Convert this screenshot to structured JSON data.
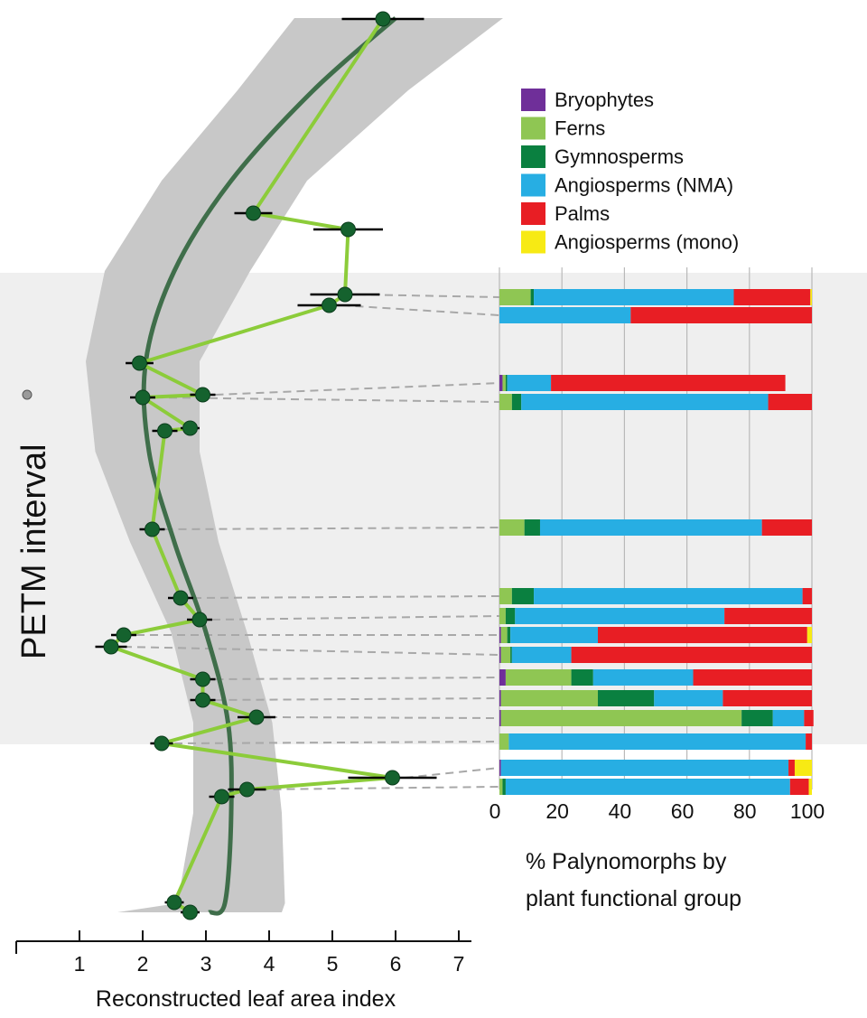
{
  "colors": {
    "Bryophytes": "#6f2f99",
    "Ferns": "#8fc653",
    "Gymnosperms": "#0a8040",
    "Angiosperms (NMA)": "#27aee3",
    "Palms": "#e81e24",
    "Angiosperms (mono)": "#f7ea14",
    "trend_line": "#3f6e4a",
    "raw_line": "#8ccc3a",
    "point": "#15622e",
    "ci_band": "#c8c8c8",
    "petm_band": "#efefef"
  },
  "petm_label": "PETM interval",
  "chart_data": [
    {
      "type": "line",
      "name": "lai",
      "xlabel": "Reconstructed leaf area index",
      "xlim": [
        0,
        7
      ],
      "x_ticks": [
        1,
        2,
        3,
        4,
        5,
        6,
        7
      ],
      "points": [
        {
          "lai": 5.8,
          "err": 0.65
        },
        {
          "lai": 3.75,
          "err": 0.3
        },
        {
          "lai": 5.25,
          "err": 0.55
        },
        {
          "lai": 5.2,
          "err": 0.55
        },
        {
          "lai": 4.95,
          "err": 0.5
        },
        {
          "lai": 1.95,
          "err": 0.22
        },
        {
          "lai": 2.95,
          "err": 0.2
        },
        {
          "lai": 2.0,
          "err": 0.2
        },
        {
          "lai": 2.75,
          "err": 0.15
        },
        {
          "lai": 2.35,
          "err": 0.2
        },
        {
          "lai": 2.15,
          "err": 0.2
        },
        {
          "lai": 2.6,
          "err": 0.2
        },
        {
          "lai": 2.9,
          "err": 0.2
        },
        {
          "lai": 1.7,
          "err": 0.2
        },
        {
          "lai": 1.5,
          "err": 0.25
        },
        {
          "lai": 2.95,
          "err": 0.2
        },
        {
          "lai": 2.95,
          "err": 0.2
        },
        {
          "lai": 3.8,
          "err": 0.3
        },
        {
          "lai": 2.3,
          "err": 0.18
        },
        {
          "lai": 5.95,
          "err": 0.7
        },
        {
          "lai": 3.65,
          "err": 0.3
        },
        {
          "lai": 3.25,
          "err": 0.2
        },
        {
          "lai": 2.5,
          "err": 0.15
        },
        {
          "lai": 2.75,
          "err": 0.15
        }
      ],
      "trend": [
        6.0,
        4.7,
        3.4,
        2.5,
        2.05,
        2.1,
        2.5,
        3.0,
        3.35,
        3.4,
        3.3,
        3.05
      ],
      "ci_lower": [
        4.4,
        3.5,
        2.3,
        1.4,
        1.1,
        1.25,
        1.8,
        2.45,
        2.8,
        2.8,
        2.55,
        1.6
      ],
      "ci_upper": [
        7.7,
        6.2,
        4.6,
        3.7,
        2.9,
        2.9,
        3.2,
        3.65,
        4.05,
        4.2,
        4.25,
        4.2
      ]
    },
    {
      "type": "bar",
      "name": "palynomorphs",
      "orientation": "horizontal",
      "stacked": true,
      "xlabel": "% Palynomorphs by plant functional group",
      "xlim": [
        0,
        100
      ],
      "x_ticks": [
        0,
        20,
        40,
        60,
        80,
        100
      ],
      "grid": true,
      "legend_position": "top-right",
      "series": [
        {
          "name": "Bryophytes",
          "values": [
            0,
            0,
            1,
            0,
            0,
            0,
            0,
            0.5,
            0.5,
            2,
            0.5,
            0.5,
            0,
            0.5,
            0
          ]
        },
        {
          "name": "Ferns",
          "values": [
            10,
            0,
            1,
            4,
            8,
            4,
            2,
            2,
            3,
            21,
            31,
            77,
            3,
            0,
            1
          ]
        },
        {
          "name": "Gymnosperms",
          "values": [
            1,
            0,
            0.5,
            3,
            5,
            7,
            3,
            1,
            0.5,
            7,
            18,
            10,
            0,
            0,
            1
          ]
        },
        {
          "name": "Angiosperms (NMA)",
          "values": [
            64,
            42,
            14,
            79,
            71,
            86,
            67,
            28,
            19,
            32,
            22,
            10,
            95,
            92,
            91
          ]
        },
        {
          "name": "Palms",
          "values": [
            24.5,
            58,
            75,
            14,
            16,
            3,
            28,
            67,
            77,
            38,
            28.5,
            3,
            2,
            2,
            6
          ]
        },
        {
          "name": "Angiosperms (mono)",
          "values": [
            0.5,
            0,
            0,
            0,
            0,
            0,
            0,
            1.5,
            0,
            0,
            0,
            0,
            0,
            5.5,
            1
          ]
        }
      ],
      "links": [
        3,
        4,
        6,
        7,
        10,
        11,
        12,
        13,
        14,
        15,
        16,
        17,
        18,
        19,
        20
      ]
    }
  ]
}
